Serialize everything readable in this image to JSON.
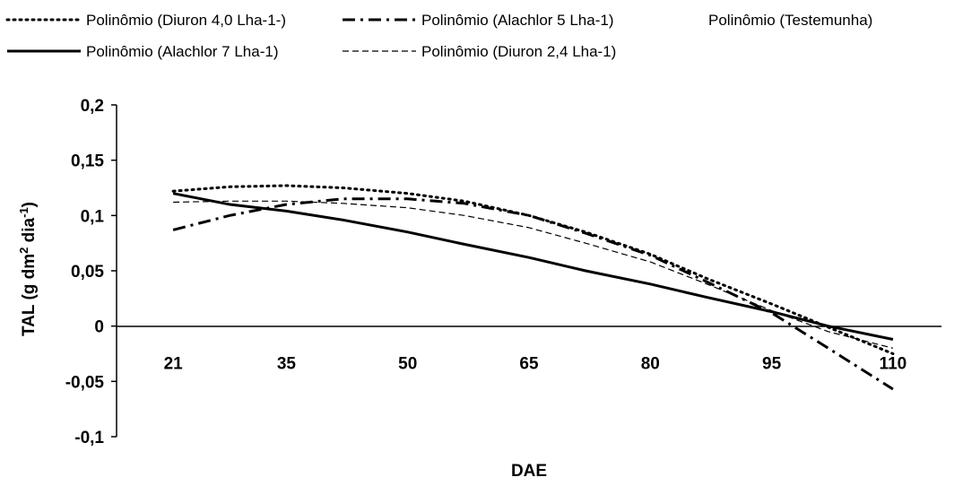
{
  "chart_data": {
    "type": "line",
    "xlabel": "DAE",
    "ylabel": {
      "main": "TAL (g dm",
      "sup1": "2",
      "mid": " dia",
      "sup2": "-1",
      "end": ")"
    },
    "categories": [
      "21",
      "35",
      "50",
      "65",
      "80",
      "95",
      "110"
    ],
    "y_ticks": [
      "0,2",
      "0,15",
      "0,1",
      "0,05",
      "0",
      "-0,05",
      "-0,1"
    ],
    "ylim": [
      -0.1,
      0.2
    ],
    "grid": false,
    "legend_position": "top",
    "series": [
      {
        "name": "Polinômio (Diuron 4,0 Lha-1-)",
        "style": "dotted",
        "x": [
          21,
          28,
          35,
          42,
          50,
          57,
          65,
          72,
          80,
          87,
          95,
          102,
          110
        ],
        "values": [
          0.122,
          0.126,
          0.127,
          0.125,
          0.12,
          0.113,
          0.1,
          0.085,
          0.065,
          0.043,
          0.02,
          -0.001,
          -0.025
        ]
      },
      {
        "name": "Polinômio (Alachlor  5 Lha-1)",
        "style": "dashdot",
        "x": [
          21,
          28,
          35,
          42,
          50,
          57,
          65,
          72,
          80,
          87,
          95,
          102,
          110
        ],
        "values": [
          0.087,
          0.1,
          0.11,
          0.115,
          0.115,
          0.111,
          0.1,
          0.084,
          0.064,
          0.04,
          0.012,
          -0.02,
          -0.057
        ]
      },
      {
        "name": "Polinômio (Testemunha)",
        "style": "none",
        "x": [],
        "values": []
      },
      {
        "name": "Polinômio (Alachlor 7 Lha-1)",
        "style": "solid",
        "x": [
          21,
          28,
          35,
          42,
          50,
          57,
          65,
          72,
          80,
          87,
          95,
          102,
          110
        ],
        "values": [
          0.12,
          0.11,
          0.104,
          0.096,
          0.085,
          0.074,
          0.062,
          0.05,
          0.038,
          0.026,
          0.013,
          0.0,
          -0.012
        ]
      },
      {
        "name": "Polinômio (Diuron 2,4 Lha-1)",
        "style": "dashed",
        "x": [
          21,
          28,
          35,
          42,
          50,
          57,
          65,
          72,
          80,
          87,
          95,
          102,
          110
        ],
        "values": [
          0.112,
          0.113,
          0.113,
          0.111,
          0.107,
          0.1,
          0.089,
          0.075,
          0.058,
          0.038,
          0.014,
          -0.005,
          -0.02
        ]
      }
    ]
  }
}
